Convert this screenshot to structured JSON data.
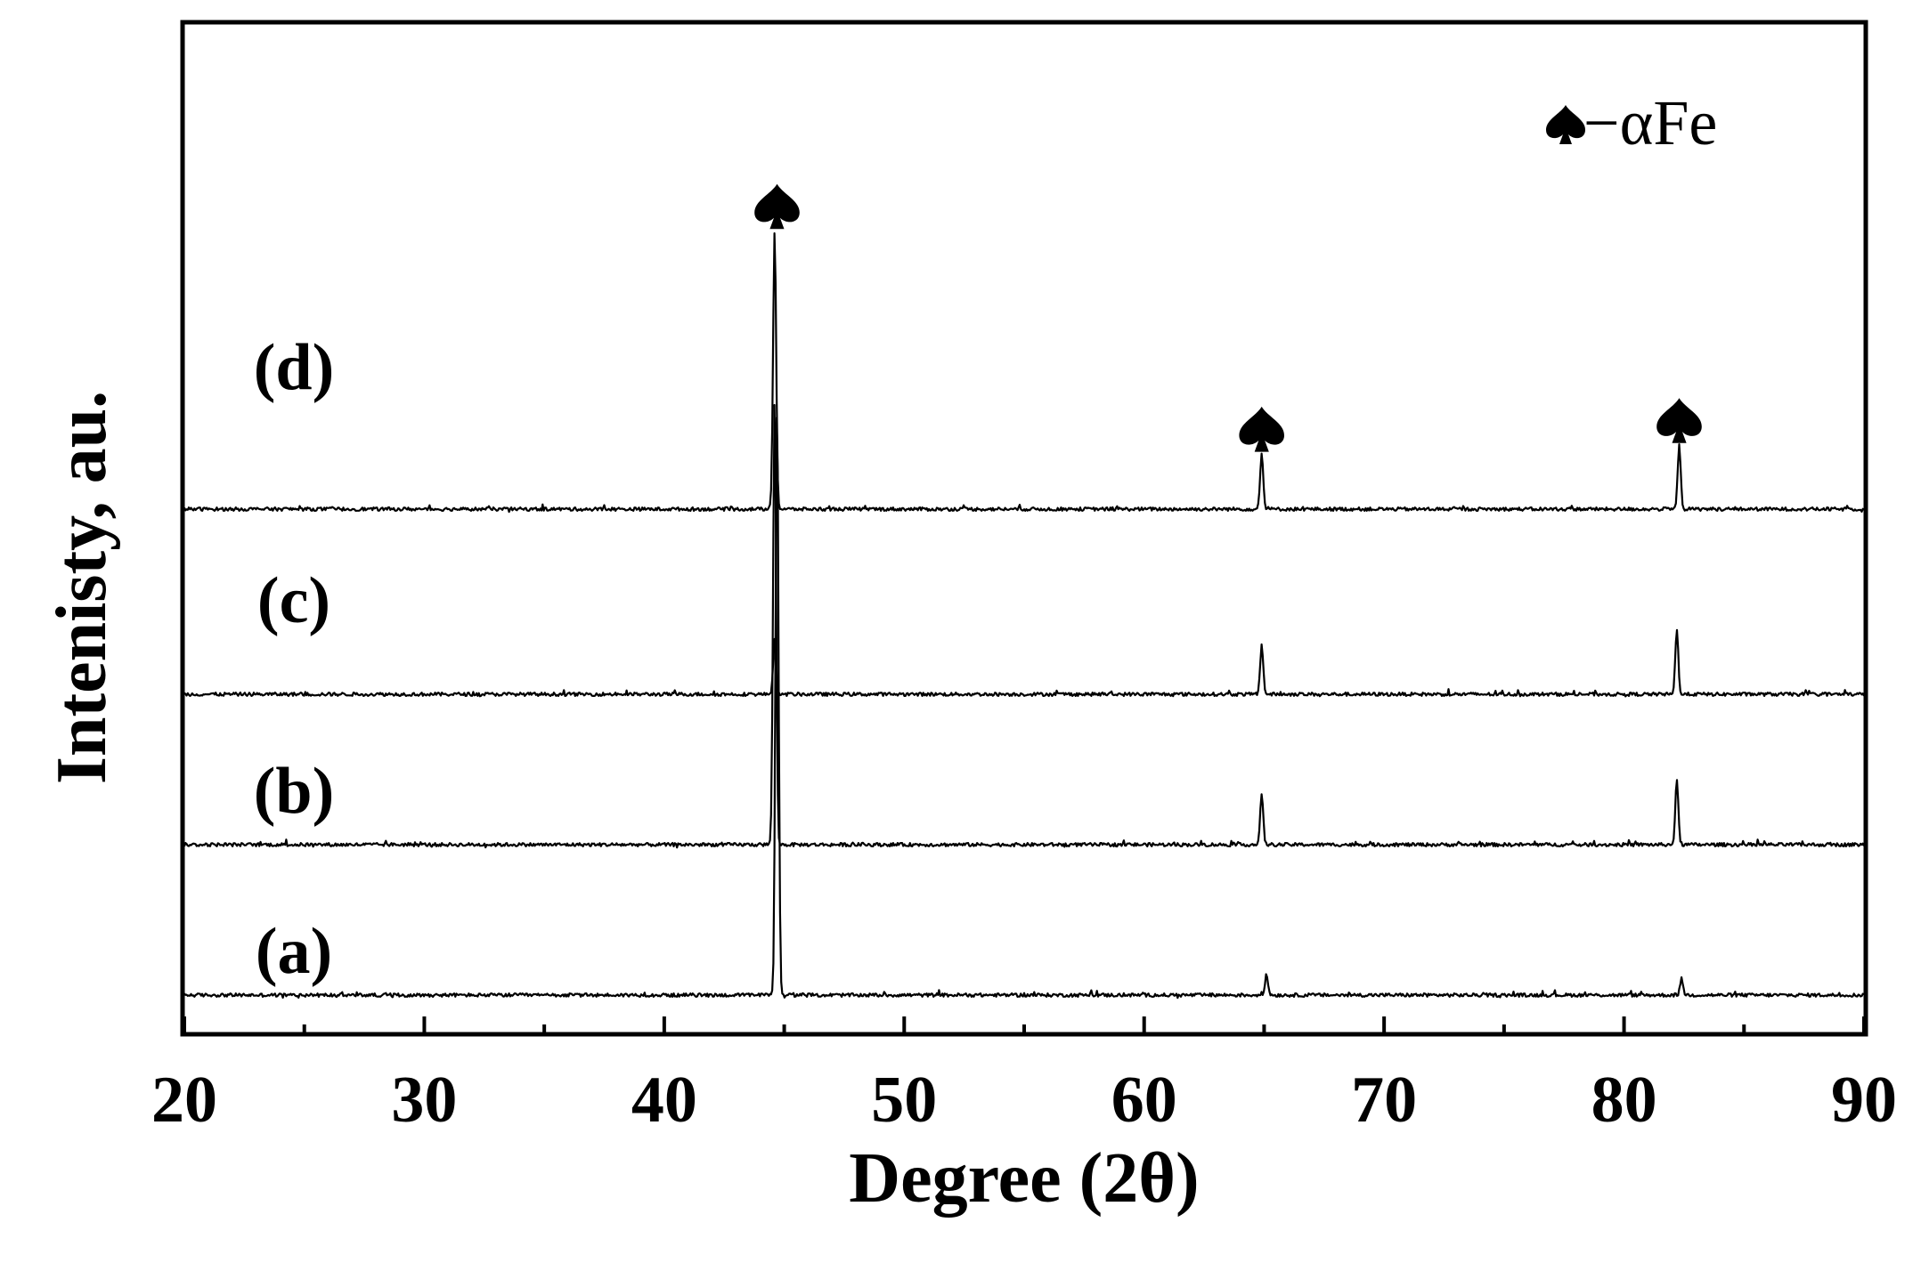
{
  "chart_data": {
    "type": "line",
    "xlabel": "Degree (2θ)",
    "ylabel": "Intenisty, au.",
    "xlim": [
      20,
      90
    ],
    "x_ticks": [
      20,
      30,
      40,
      50,
      60,
      70,
      80,
      90
    ],
    "grid": false,
    "legend": {
      "marker": "♠",
      "text": "−αFe",
      "position": "top-right"
    },
    "peak_marker": "♠",
    "marked_peaks_2theta": [
      44.7,
      64.9,
      82.3
    ],
    "series": [
      {
        "name": "(a)",
        "offset": 0,
        "noise": 0.03,
        "peaks": [
          {
            "x": 44.7,
            "height": 10.2
          },
          {
            "x": 65.1,
            "height": 0.35
          },
          {
            "x": 82.4,
            "height": 0.28
          }
        ]
      },
      {
        "name": "(b)",
        "offset": 2.6,
        "noise": 0.03,
        "peaks": [
          {
            "x": 44.6,
            "height": 7.6
          },
          {
            "x": 64.9,
            "height": 0.85
          },
          {
            "x": 82.2,
            "height": 1.1
          }
        ]
      },
      {
        "name": "(c)",
        "offset": 5.2,
        "noise": 0.03,
        "peaks": [
          {
            "x": 44.6,
            "height": 0.9
          },
          {
            "x": 64.9,
            "height": 0.85
          },
          {
            "x": 82.2,
            "height": 1.1
          }
        ]
      },
      {
        "name": "(d)",
        "offset": 8.4,
        "noise": 0.03,
        "peaks": [
          {
            "x": 44.6,
            "height": 4.8
          },
          {
            "x": 64.9,
            "height": 0.95
          },
          {
            "x": 82.3,
            "height": 1.1
          }
        ]
      }
    ]
  }
}
